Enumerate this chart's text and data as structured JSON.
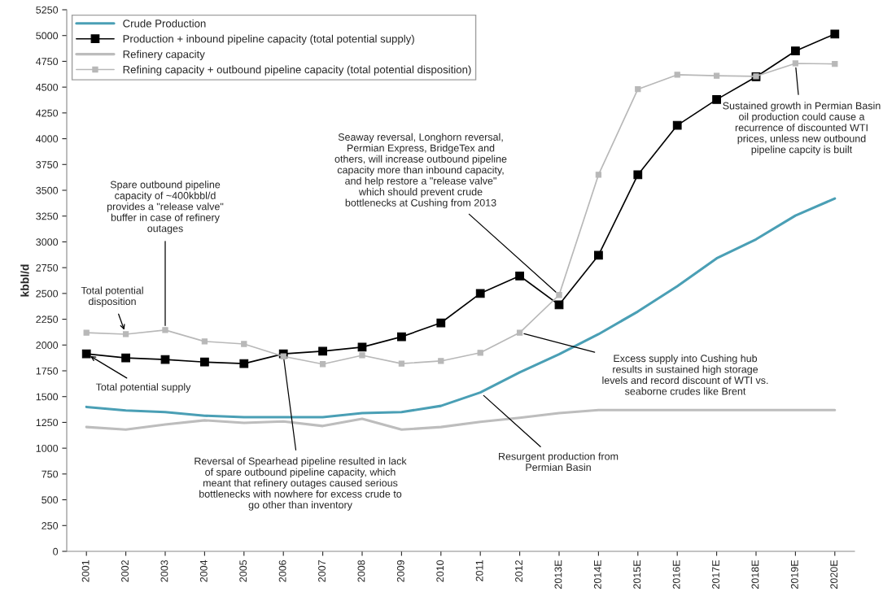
{
  "chart_data": {
    "type": "line",
    "ylabel": "kbbl/d",
    "categories": [
      "2001",
      "2002",
      "2003",
      "2004",
      "2005",
      "2006",
      "2007",
      "2008",
      "2009",
      "2010",
      "2011",
      "2012",
      "2013E",
      "2014E",
      "2015E",
      "2016E",
      "2017E",
      "2018E",
      "2019E",
      "2020E"
    ],
    "series": [
      {
        "name": "Crude Production",
        "color": "#4a9fb5",
        "marker": "none",
        "values": [
          1400,
          1365,
          1350,
          1315,
          1300,
          1300,
          1300,
          1340,
          1350,
          1410,
          1540,
          1735,
          1910,
          2105,
          2325,
          2570,
          2840,
          3025,
          3255,
          3420
        ]
      },
      {
        "name": "Production + inbound pipeline capacity (total potential supply)",
        "color": "#000000",
        "marker": "square",
        "values": [
          1915,
          1875,
          1860,
          1835,
          1820,
          1915,
          1940,
          1980,
          2080,
          2215,
          2500,
          2670,
          2390,
          2870,
          3650,
          4130,
          4380,
          4600,
          4850,
          5015
        ]
      },
      {
        "name": "Refinery capacity",
        "color": "#bdbdbd",
        "marker": "none",
        "values": [
          1205,
          1180,
          1230,
          1270,
          1245,
          1260,
          1215,
          1285,
          1180,
          1205,
          1255,
          1295,
          1340,
          1370,
          1370,
          1370,
          1370,
          1370,
          1370,
          1370
        ]
      },
      {
        "name": "Refining capacity + outbound pipeline capacity (total potential disposition)",
        "color": "#b8b8b8",
        "marker": "square",
        "values": [
          2120,
          2105,
          2145,
          2035,
          2010,
          1890,
          1815,
          1900,
          1820,
          1845,
          1925,
          2120,
          2485,
          3650,
          4480,
          4620,
          4610,
          4605,
          4730,
          4725
        ]
      }
    ],
    "ylim": [
      0,
      5250
    ],
    "yticks": [
      0,
      250,
      500,
      750,
      1000,
      1250,
      1500,
      1750,
      2000,
      2250,
      2500,
      2750,
      3000,
      3250,
      3500,
      3750,
      4000,
      4250,
      4500,
      4750,
      5000,
      5250
    ],
    "grid": false,
    "legend": "top left",
    "line_style": "solid",
    "annotations": [
      {
        "text": "Total potential\ndisposition",
        "x": "2002",
        "y": 2105
      },
      {
        "text": "Total potential supply",
        "x": "2001",
        "y": 1915
      },
      {
        "text": "Spare outbound pipeline\ncapacity of ~400kbbl/d\nprovides a \"release valve\"\nbuffer in case of refinery\noutages",
        "x": "2003",
        "y": 2145
      },
      {
        "text": "Seaway reversal, Longhorn reversal,\nPermian Express, BridgeTex and\nothers, will increase outbound pipeline\ncapacity more than inbound capacity,\nand help restore a \"release valve\"\nwhich should prevent crude\nbottlenecks at Cushing from 2013",
        "x": "2013E",
        "y": 2485
      },
      {
        "text": "Sustained growth in Permian Basin\noil production could cause a\nrecurrence of discounted WTI\nprices, unless new outbound\npipeline capcity is built",
        "x": "2019E",
        "y": 4730
      },
      {
        "text": "Excess supply into Cushing hub\nresults in sustained high storage\nlevels and record discount of WTI vs.\nseaborne crudes like Brent",
        "x": "2012",
        "y": 2120
      },
      {
        "text": "Reversal of Spearhead pipeline resulted in lack\nof spare outbound pipeline capacity, which\nmeant that refinery outages caused serious\nbottlenecks with nowhere for excess crude to\ngo other than inventory",
        "x": "2006",
        "y": 1900
      },
      {
        "text": "Resurgent production from\nPermian Basin",
        "x": "2011",
        "y": 1540
      }
    ]
  }
}
